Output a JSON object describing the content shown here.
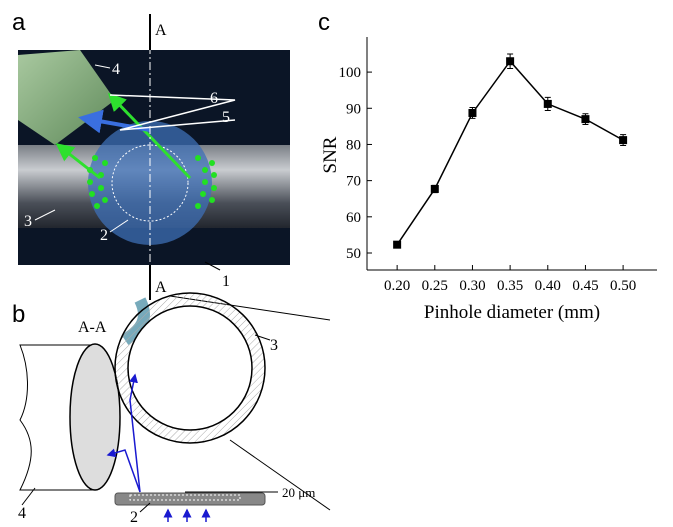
{
  "panel_labels": {
    "a": "a",
    "b": "b",
    "c": "c"
  },
  "diagram_a": {
    "section_top": "A",
    "section_bottom": "A",
    "labels": [
      "4",
      "6",
      "5",
      "3",
      "2",
      "1"
    ]
  },
  "diagram_b": {
    "section": "A-A",
    "labels": [
      "3",
      "4",
      "2"
    ],
    "gap": "20 μm"
  },
  "chart_data": {
    "type": "line",
    "xlabel": "Pinhole diameter (mm)",
    "ylabel": "SNR",
    "x": [
      0.2,
      0.25,
      0.3,
      0.35,
      0.4,
      0.45,
      0.5
    ],
    "values": [
      52.3,
      67.7,
      88.7,
      103,
      91.2,
      87,
      81.2
    ],
    "errors": [
      0.8,
      1,
      1.5,
      2,
      1.8,
      1.5,
      1.5
    ],
    "color": "#000000",
    "xlim": [
      0.16,
      0.545
    ],
    "ylim": [
      45.3,
      109.7
    ],
    "xticks": [
      {
        "value": 0.2,
        "label": "0.20"
      },
      {
        "value": 0.25,
        "label": "0.25"
      },
      {
        "value": 0.3,
        "label": "0.30"
      },
      {
        "value": 0.35,
        "label": "0.35"
      },
      {
        "value": 0.4,
        "label": "0.40"
      },
      {
        "value": 0.45,
        "label": "0.45"
      },
      {
        "value": 0.5,
        "label": "0.50"
      }
    ],
    "yticks": [
      50,
      60,
      70,
      80,
      90,
      100
    ]
  }
}
